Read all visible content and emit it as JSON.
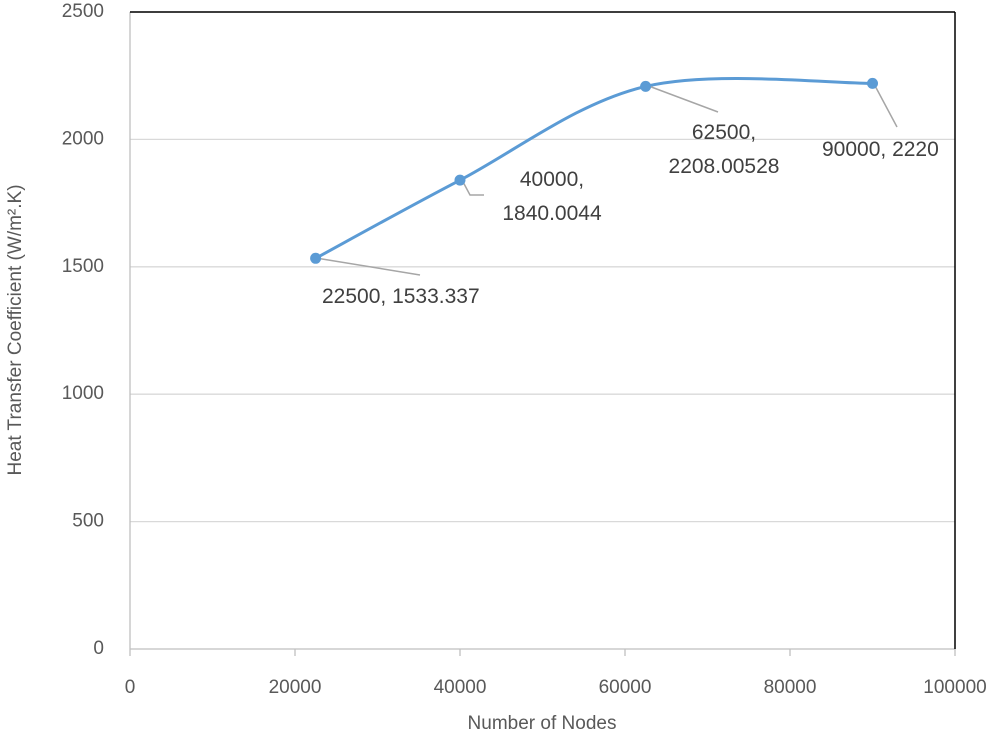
{
  "chart_data": {
    "type": "line",
    "x_label": "Number of Nodes",
    "y_label": "Heat Transfer Coefficient (W/m².K)",
    "x": [
      22500,
      40000,
      62500,
      90000
    ],
    "series": [
      {
        "color": "#5b9bd5",
        "values": [
          1533.337,
          1840.0044,
          2208.00528,
          2220
        ],
        "value_labels": [
          "22500, 1533.337",
          "40000, 1840.0044",
          "62500, 2208.00528",
          "90000, 2220"
        ]
      }
    ],
    "xlim": [
      0,
      100000
    ],
    "xticks": [
      0,
      20000,
      40000,
      60000,
      80000,
      100000
    ],
    "ylim": [
      0,
      2500
    ],
    "yticks": [
      0,
      500,
      1000,
      1500,
      2000,
      2500
    ],
    "grid": true,
    "smooth": true
  }
}
